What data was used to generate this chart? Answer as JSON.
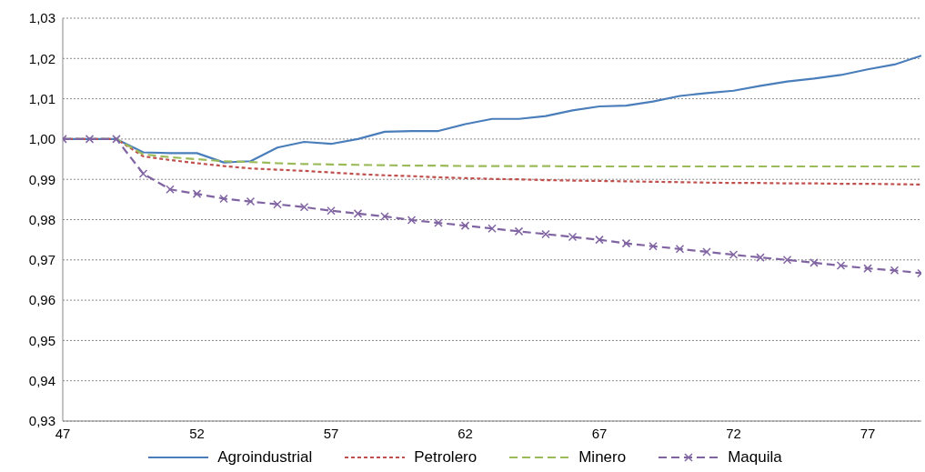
{
  "chart_data": {
    "type": "line",
    "x": [
      47,
      48,
      49,
      50,
      51,
      52,
      53,
      54,
      55,
      56,
      57,
      58,
      59,
      60,
      61,
      62,
      63,
      64,
      65,
      66,
      67,
      68,
      69,
      70,
      71,
      72,
      73,
      74,
      75,
      76,
      77,
      78,
      79
    ],
    "xlim": [
      47,
      79
    ],
    "xticks": [
      47,
      52,
      57,
      62,
      67,
      72,
      77
    ],
    "ylim": [
      0.93,
      1.03
    ],
    "yticks": [
      {
        "value": 0.93,
        "label": "0,93"
      },
      {
        "value": 0.94,
        "label": "0,94"
      },
      {
        "value": 0.95,
        "label": "0,95"
      },
      {
        "value": 0.96,
        "label": "0,96"
      },
      {
        "value": 0.97,
        "label": "0,97"
      },
      {
        "value": 0.98,
        "label": "0,98"
      },
      {
        "value": 0.99,
        "label": "0,99"
      },
      {
        "value": 1.0,
        "label": "1,00"
      },
      {
        "value": 1.01,
        "label": "1,01"
      },
      {
        "value": 1.02,
        "label": "1,02"
      },
      {
        "value": 1.03,
        "label": "1,03"
      }
    ],
    "grid": "y",
    "legend": "bottom",
    "series": [
      {
        "name": "Agroindustrial",
        "color": "#4a7ebb",
        "line_style": "solid",
        "marker": "none",
        "values": [
          1.0,
          1.0,
          1.0,
          0.9967,
          0.9965,
          0.9965,
          0.9942,
          0.9945,
          0.9979,
          0.9993,
          0.9988,
          1.0,
          1.0018,
          1.002,
          1.002,
          1.0037,
          1.005,
          1.005,
          1.0057,
          1.0071,
          1.0081,
          1.0083,
          1.0093,
          1.0107,
          1.0114,
          1.012,
          1.0132,
          1.0143,
          1.015,
          1.0159,
          1.0173,
          1.0185,
          1.0207
        ]
      },
      {
        "name": "Petrolero",
        "color": "#c0504d",
        "line_style": "dotted",
        "marker": "none",
        "values": [
          1.0,
          1.0,
          1.0,
          0.9957,
          0.9948,
          0.994,
          0.9933,
          0.9927,
          0.9924,
          0.9921,
          0.9917,
          0.9913,
          0.991,
          0.9908,
          0.9905,
          0.9903,
          0.9901,
          0.99,
          0.9898,
          0.9897,
          0.9896,
          0.9895,
          0.9894,
          0.9893,
          0.9892,
          0.9891,
          0.9891,
          0.989,
          0.989,
          0.9889,
          0.9889,
          0.9888,
          0.9887
        ]
      },
      {
        "name": "Minero",
        "color": "#9bbb59",
        "line_style": "dashed",
        "marker": "none",
        "values": [
          1.0,
          1.0,
          1.0,
          0.9962,
          0.9955,
          0.995,
          0.9945,
          0.9943,
          0.994,
          0.9938,
          0.9937,
          0.9936,
          0.9935,
          0.9934,
          0.9934,
          0.9933,
          0.9933,
          0.9933,
          0.9933,
          0.9932,
          0.9932,
          0.9932,
          0.9932,
          0.9932,
          0.9932,
          0.9932,
          0.9932,
          0.9932,
          0.9932,
          0.9932,
          0.9932,
          0.9932,
          0.9932
        ]
      },
      {
        "name": "Maquila",
        "color": "#8064a2",
        "line_style": "dashed",
        "marker": "cross",
        "values": [
          1.0,
          1.0,
          1.0,
          0.9914,
          0.9875,
          0.9864,
          0.9852,
          0.9845,
          0.9838,
          0.9831,
          0.9822,
          0.9815,
          0.9808,
          0.9799,
          0.9792,
          0.9785,
          0.9778,
          0.9771,
          0.9764,
          0.9757,
          0.975,
          0.9741,
          0.9734,
          0.9727,
          0.972,
          0.9713,
          0.9706,
          0.97,
          0.9693,
          0.9686,
          0.9679,
          0.9674,
          0.9667
        ]
      }
    ]
  }
}
